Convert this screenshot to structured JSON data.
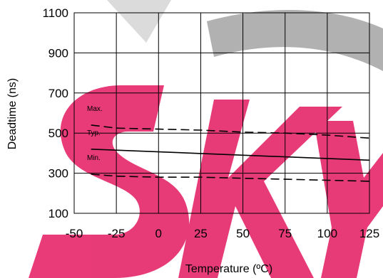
{
  "chart_data": {
    "type": "line",
    "xlabel": "Temperature (ºC)",
    "ylabel": "Deadtime (ns)",
    "xlim": [
      -50,
      125
    ],
    "ylim": [
      100,
      1100
    ],
    "x_ticks": [
      "-50",
      "-25",
      "0",
      "25",
      "50",
      "75",
      "100",
      "125"
    ],
    "y_ticks": [
      "100",
      "300",
      "500",
      "700",
      "900",
      "1100"
    ],
    "grid": true,
    "x_tick_values": [
      -50,
      -25,
      0,
      25,
      50,
      75,
      100,
      125
    ],
    "y_tick_values": [
      100,
      300,
      500,
      700,
      900,
      1100
    ],
    "series": [
      {
        "name": "Max.",
        "style": "dashed",
        "x": [
          -40,
          -25,
          0,
          25,
          50,
          75,
          100,
          125
        ],
        "y": [
          540,
          525,
          520,
          515,
          505,
          500,
          490,
          475
        ]
      },
      {
        "name": "Typ.",
        "style": "solid",
        "x": [
          -40,
          125
        ],
        "y": [
          420,
          365
        ]
      },
      {
        "name": "Min.",
        "style": "dashed",
        "x": [
          -40,
          -25,
          0,
          25,
          50,
          75,
          100,
          125
        ],
        "y": [
          295,
          285,
          280,
          280,
          275,
          270,
          265,
          260
        ]
      }
    ],
    "colors": {
      "line": "#000000",
      "grid": "#000000",
      "watermark": "#e0004f"
    }
  }
}
